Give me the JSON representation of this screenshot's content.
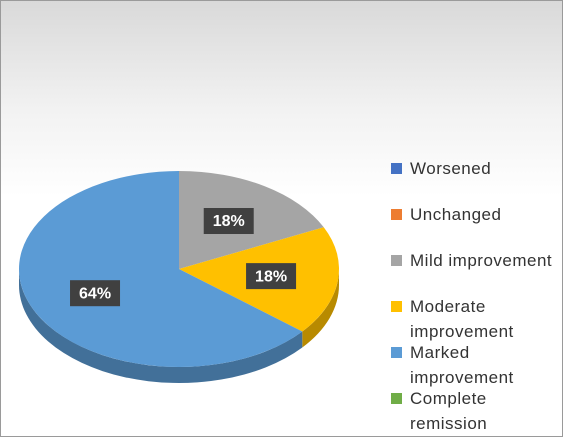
{
  "chart_data": {
    "type": "pie",
    "categories": [
      "Worsened",
      "Unchanged",
      "Mild improvement",
      "Moderate improvement",
      "Marked improvement",
      "Complete remission"
    ],
    "values": [
      0,
      0,
      18,
      18,
      64,
      0
    ],
    "value_labels": [
      null,
      null,
      "18%",
      "18%",
      "64%",
      null
    ],
    "colors": [
      "#4472c4",
      "#ed7d31",
      "#a5a5a5",
      "#ffc000",
      "#5b9bd5",
      "#70ad47"
    ],
    "legend": "right"
  }
}
